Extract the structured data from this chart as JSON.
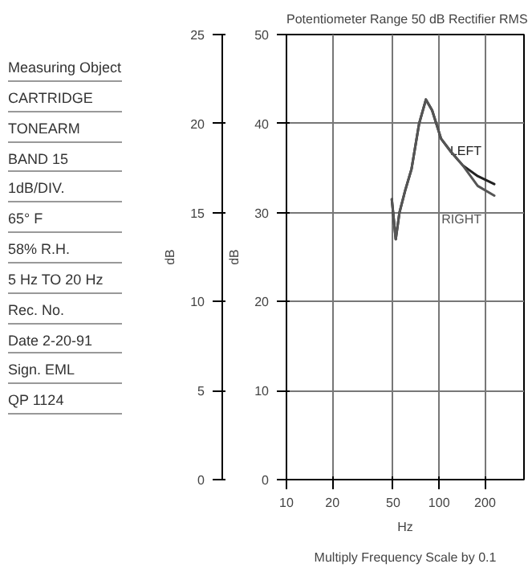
{
  "chart_data": {
    "type": "line",
    "title": "Potentiometer Range 50 dB Rectifier RMS",
    "xlabel": "Hz",
    "ylabel": "dB",
    "y2label": "dB",
    "annotations": [
      "Measuring Object",
      "CARTRIDGE",
      "TONEARM",
      "BAND 15",
      "1dB/DIV.",
      "65° F",
      "58% R.H.",
      "5 Hz TO 20 Hz",
      "Rec. No.",
      "Date 2-20-91",
      "Sign. EML",
      "QP 1124",
      "Multiply Frequency Scale by 0.1"
    ],
    "log": "x",
    "xlim": [
      10,
      360
    ],
    "xticks": [
      10,
      20,
      50,
      100,
      200
    ],
    "ylim": [
      0,
      50
    ],
    "yticks": [
      0,
      10,
      20,
      30,
      40,
      50
    ],
    "y2lim": [
      0,
      25
    ],
    "y2ticks": [
      0,
      5,
      10,
      15,
      20,
      25
    ],
    "grid": true,
    "series": [
      {
        "name": "LEFT",
        "color": "#222222",
        "x": [
          49,
          52,
          55,
          60,
          66,
          74,
          82,
          90,
          103,
          120,
          143,
          179,
          230
        ],
        "values": [
          31.5,
          27,
          30,
          32.5,
          34.9,
          40,
          42.7,
          41.5,
          38.3,
          36.8,
          35.3,
          34.1,
          33.2
        ]
      },
      {
        "name": "RIGHT",
        "color": "#555555",
        "x": [
          49,
          52,
          55,
          60,
          66,
          74,
          82,
          90,
          103,
          120,
          143,
          179,
          230
        ],
        "values": [
          31.5,
          27,
          30,
          32.5,
          34.9,
          40,
          42.7,
          41.5,
          38.3,
          36.8,
          35.3,
          33.0,
          31.9
        ]
      }
    ]
  }
}
